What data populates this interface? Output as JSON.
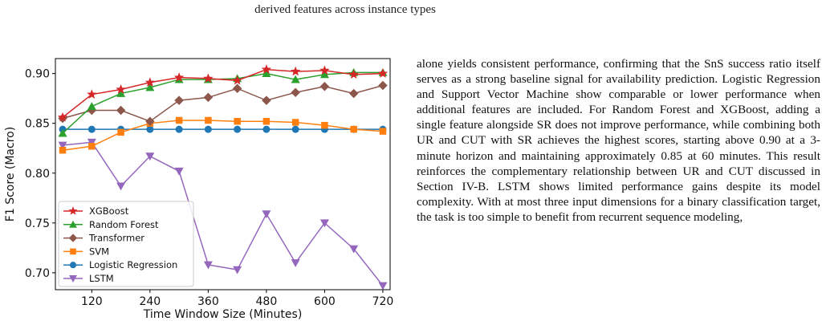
{
  "caption": "derived features across instance types",
  "paragraph": "alone yields consistent performance, confirming that the SnS success ratio itself serves as a strong baseline signal for availability prediction. Logistic Regression and Support Vector Machine show comparable or lower performance when additional features are included. For Random Forest and XGBoost, adding a single feature alongside SR does not improve performance, while combining both UR and CUT with SR achieves the highest scores, starting above 0.90 at a 3-minute horizon and maintaining approximately 0.85 at 60 minutes. This result reinforces the complementary relationship between UR and CUT discussed in Section IV-B. LSTM shows limited performance gains despite its model complexity. With at most three input dimensions for a binary classification target, the task is too simple to benefit from recurrent sequence modeling,",
  "chart_data": {
    "type": "line",
    "title": "",
    "xlabel": "Time Window Size (Minutes)",
    "ylabel": "F1 Score (Macro)",
    "xlim": [
      45,
      735
    ],
    "ylim": [
      0.683,
      0.915
    ],
    "xticks": [
      120,
      240,
      360,
      480,
      600,
      720
    ],
    "yticks": [
      0.7,
      0.75,
      0.8,
      0.85,
      0.9
    ],
    "x": [
      60,
      120,
      180,
      240,
      300,
      360,
      420,
      480,
      540,
      600,
      660,
      720
    ],
    "legend_position": "lower-left",
    "series": [
      {
        "name": "XGBoost",
        "color": "#d62728",
        "marker": "star",
        "values": [
          0.856,
          0.879,
          0.884,
          0.891,
          0.896,
          0.895,
          0.893,
          0.904,
          0.902,
          0.903,
          0.899,
          0.9
        ]
      },
      {
        "name": "Random Forest",
        "color": "#2ca02c",
        "marker": "triangle-up",
        "values": [
          0.84,
          0.867,
          0.88,
          0.886,
          0.894,
          0.894,
          0.895,
          0.9,
          0.894,
          0.899,
          0.901,
          0.901
        ]
      },
      {
        "name": "Transformer",
        "color": "#8c564b",
        "marker": "diamond",
        "values": [
          0.855,
          0.863,
          0.863,
          0.852,
          0.873,
          0.876,
          0.885,
          0.873,
          0.881,
          0.887,
          0.88,
          0.888
        ]
      },
      {
        "name": "SVM",
        "color": "#ff7f0e",
        "marker": "square",
        "values": [
          0.823,
          0.827,
          0.841,
          0.85,
          0.853,
          0.853,
          0.852,
          0.852,
          0.851,
          0.848,
          0.844,
          0.842
        ]
      },
      {
        "name": "Logistic Regression",
        "color": "#1f77b4",
        "marker": "circle",
        "values": [
          0.844,
          0.844,
          0.844,
          0.844,
          0.844,
          0.844,
          0.844,
          0.844,
          0.844,
          0.844,
          0.844,
          0.844
        ]
      },
      {
        "name": "LSTM",
        "color": "#9467bd",
        "marker": "triangle-down",
        "values": [
          0.828,
          0.831,
          0.787,
          0.817,
          0.802,
          0.708,
          0.703,
          0.759,
          0.71,
          0.75,
          0.724,
          0.687
        ]
      }
    ]
  }
}
